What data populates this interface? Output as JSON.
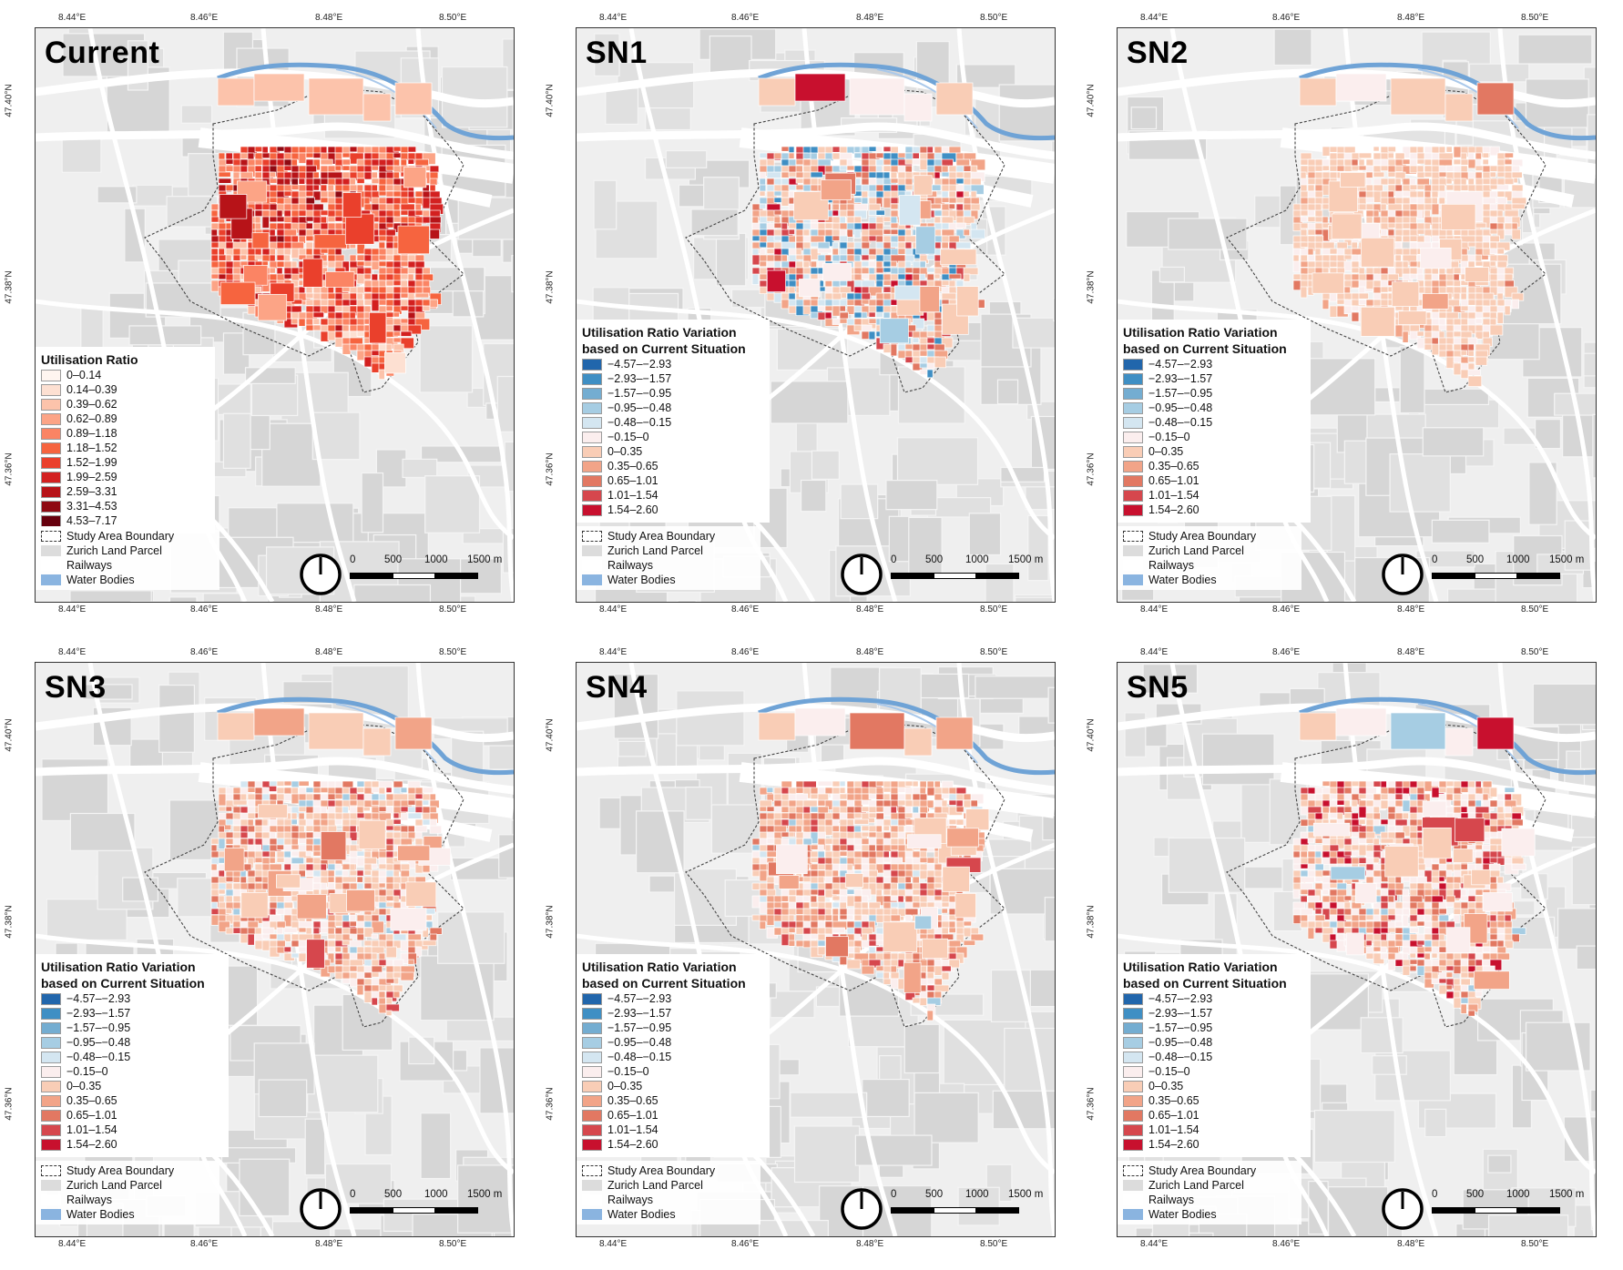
{
  "axes": {
    "lon_ticks": [
      "8.44°E",
      "8.46°E",
      "8.48°E",
      "8.50°E"
    ],
    "lat_ticks": [
      "47.40°N",
      "47.38°N",
      "47.36°N"
    ]
  },
  "panels": [
    {
      "title": "Current",
      "mode": "current",
      "seed": 11
    },
    {
      "title": "SN1",
      "mode": "sn1",
      "seed": 23
    },
    {
      "title": "SN2",
      "mode": "sn2",
      "seed": 37
    },
    {
      "title": "SN3",
      "mode": "sn3",
      "seed": 41
    },
    {
      "title": "SN4",
      "mode": "sn4",
      "seed": 53
    },
    {
      "title": "SN5",
      "mode": "sn5",
      "seed": 67
    }
  ],
  "legend_current": {
    "title": "Utilisation Ratio",
    "classes": [
      {
        "label": "0–0.14",
        "color": "#fff5f0"
      },
      {
        "label": "0.14–0.39",
        "color": "#fde0d2"
      },
      {
        "label": "0.39–0.62",
        "color": "#fcc3ab"
      },
      {
        "label": "0.62–0.89",
        "color": "#fca486"
      },
      {
        "label": "0.89–1.18",
        "color": "#fb8464"
      },
      {
        "label": "1.18–1.52",
        "color": "#f6643f"
      },
      {
        "label": "1.52–1.99",
        "color": "#ea402c"
      },
      {
        "label": "1.99–2.59",
        "color": "#d32020"
      },
      {
        "label": "2.59–3.31",
        "color": "#b71318"
      },
      {
        "label": "3.31–4.53",
        "color": "#8f0912"
      },
      {
        "label": "4.53–7.17",
        "color": "#67000d"
      }
    ]
  },
  "legend_variation": {
    "title_line1": "Utilisation Ratio Variation",
    "title_line2": "based on Current Situation",
    "classes": [
      {
        "label": "−4.57–−2.93",
        "color": "#2166ac"
      },
      {
        "label": "−2.93–−1.57",
        "color": "#3f8fc4"
      },
      {
        "label": "−1.57–−0.95",
        "color": "#74add1"
      },
      {
        "label": "−0.95–−0.48",
        "color": "#a6cde3"
      },
      {
        "label": "−0.48–−0.15",
        "color": "#d4e6f1"
      },
      {
        "label": "−0.15–0",
        "color": "#fbeeee"
      },
      {
        "label": "0–0.35",
        "color": "#f9cdb6"
      },
      {
        "label": "0.35–0.65",
        "color": "#f2a488"
      },
      {
        "label": "0.65–1.01",
        "color": "#e27862"
      },
      {
        "label": "1.01–1.54",
        "color": "#d6474d"
      },
      {
        "label": "1.54–2.60",
        "color": "#c8102e"
      }
    ]
  },
  "base_legend": [
    {
      "label": "Study Area Boundary",
      "style": "dashed"
    },
    {
      "label": "Zurich Land Parcel",
      "color": "#dcdcdc"
    },
    {
      "label": "Railways",
      "color": "#ffffff"
    },
    {
      "label": "Water Bodies",
      "color": "#8ab4e0"
    }
  ],
  "scale_bar": {
    "labels": [
      "0",
      "500",
      "1000",
      "1500 m"
    ]
  },
  "colors": {
    "map_bg": "#efefef",
    "land": "#d9d9d9",
    "road": "#ffffff",
    "water": "#6fa3d6",
    "boundary": "#444444"
  }
}
